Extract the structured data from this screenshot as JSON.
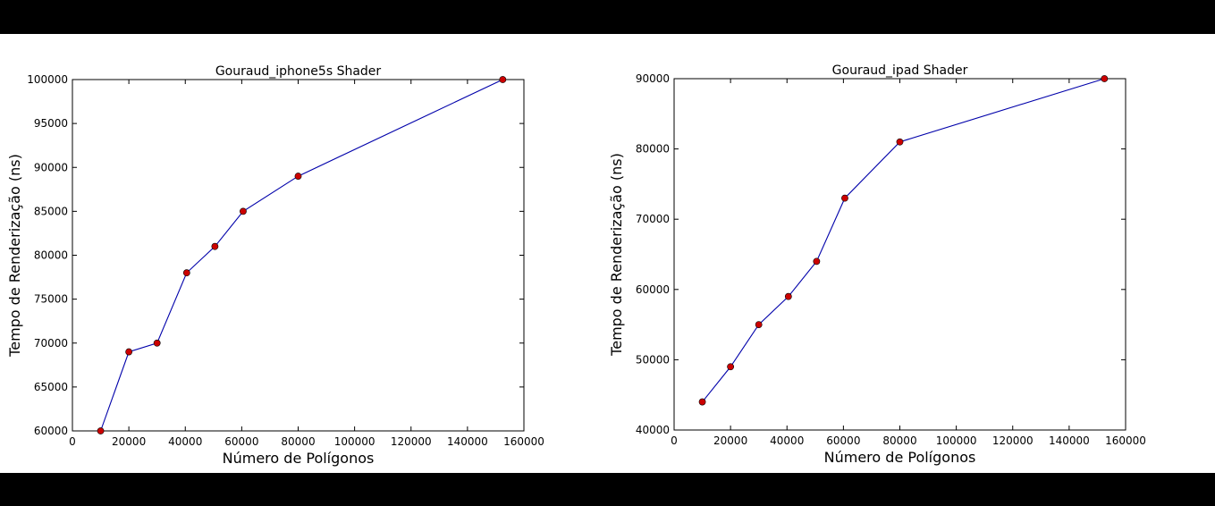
{
  "figure": {
    "background": "#ffffff",
    "frame": "#000000"
  },
  "chart_data": [
    {
      "type": "line",
      "title": "Gouraud_iphone5s Shader",
      "xlabel": "Número de Polígonos",
      "ylabel": "Tempo de Renderização (ns)",
      "xlim": [
        0,
        160000
      ],
      "ylim": [
        60000,
        100000
      ],
      "xticks": [
        0,
        20000,
        40000,
        60000,
        80000,
        100000,
        120000,
        140000,
        160000
      ],
      "yticks": [
        60000,
        65000,
        70000,
        75000,
        80000,
        85000,
        90000,
        95000,
        100000
      ],
      "grid": false,
      "line_color": "#0000aa",
      "marker_color": "#cc0000",
      "series": [
        {
          "x": [
            10000,
            20000,
            30000,
            40500,
            50500,
            60500,
            80000,
            152500
          ],
          "y": [
            60000,
            69000,
            70000,
            78000,
            81000,
            85000,
            89000,
            100000
          ]
        }
      ]
    },
    {
      "type": "line",
      "title": "Gouraud_ipad Shader",
      "xlabel": "Número de Polígonos",
      "ylabel": "Tempo de Renderização (ns)",
      "xlim": [
        0,
        160000
      ],
      "ylim": [
        40000,
        90000
      ],
      "xticks": [
        0,
        20000,
        40000,
        60000,
        80000,
        100000,
        120000,
        140000,
        160000
      ],
      "yticks": [
        40000,
        50000,
        60000,
        70000,
        80000,
        90000
      ],
      "grid": false,
      "line_color": "#0000aa",
      "marker_color": "#cc0000",
      "series": [
        {
          "x": [
            10000,
            20000,
            30000,
            40500,
            50500,
            60500,
            80000,
            152500
          ],
          "y": [
            44000,
            49000,
            55000,
            59000,
            64000,
            73000,
            81000,
            90000
          ]
        }
      ]
    }
  ]
}
